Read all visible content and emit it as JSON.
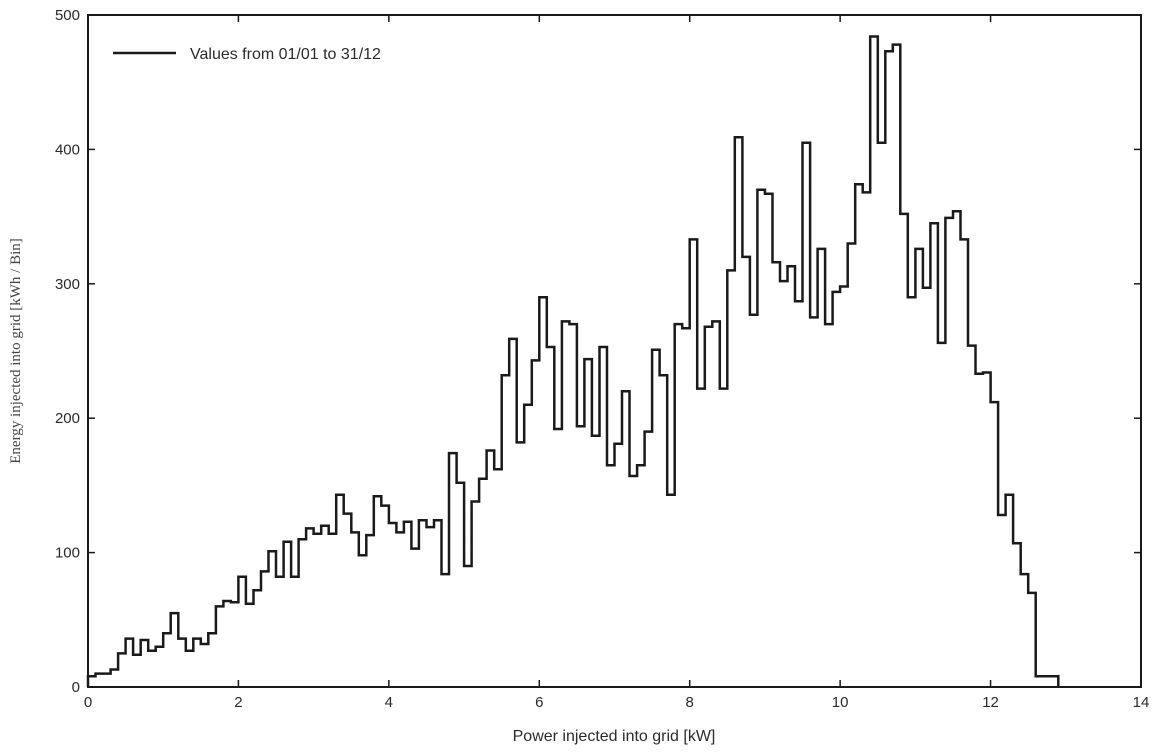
{
  "chart_data": {
    "type": "line",
    "step": true,
    "title": "",
    "xlabel": "Power injected into grid [kW]",
    "ylabel": "Energy injected into grid [kWh / Bin]",
    "xlim": [
      0,
      14
    ],
    "ylim": [
      0,
      500
    ],
    "xticks": [
      0,
      2,
      4,
      6,
      8,
      10,
      12,
      14
    ],
    "yticks": [
      0,
      100,
      200,
      300,
      400,
      500
    ],
    "grid": false,
    "legend": {
      "position": "top-left"
    },
    "line_color": "#1a1a1a",
    "series": [
      {
        "name": "Values from 01/01 to 31/12",
        "bin_width": 0.1,
        "x_start": 0,
        "values": [
          8,
          10,
          10,
          13,
          25,
          36,
          24,
          35,
          27,
          30,
          40,
          55,
          36,
          27,
          36,
          32,
          40,
          60,
          64,
          63,
          82,
          62,
          72,
          86,
          101,
          82,
          108,
          82,
          110,
          118,
          114,
          120,
          114,
          143,
          129,
          115,
          98,
          113,
          142,
          135,
          122,
          115,
          123,
          103,
          124,
          119,
          124,
          84,
          174,
          152,
          90,
          138,
          155,
          176,
          162,
          232,
          259,
          182,
          210,
          243,
          290,
          253,
          192,
          272,
          270,
          194,
          244,
          187,
          253,
          165,
          181,
          220,
          157,
          165,
          190,
          251,
          232,
          143,
          270,
          267,
          333,
          222,
          268,
          272,
          222,
          310,
          409,
          320,
          277,
          370,
          367,
          316,
          302,
          313,
          287,
          405,
          275,
          326,
          270,
          294,
          298,
          330,
          374,
          368,
          484,
          405,
          473,
          478,
          352,
          290,
          326,
          297,
          345,
          256,
          349,
          354,
          333,
          254,
          233,
          234,
          212,
          128,
          143,
          107,
          84,
          70,
          8,
          8,
          8
        ]
      }
    ]
  }
}
